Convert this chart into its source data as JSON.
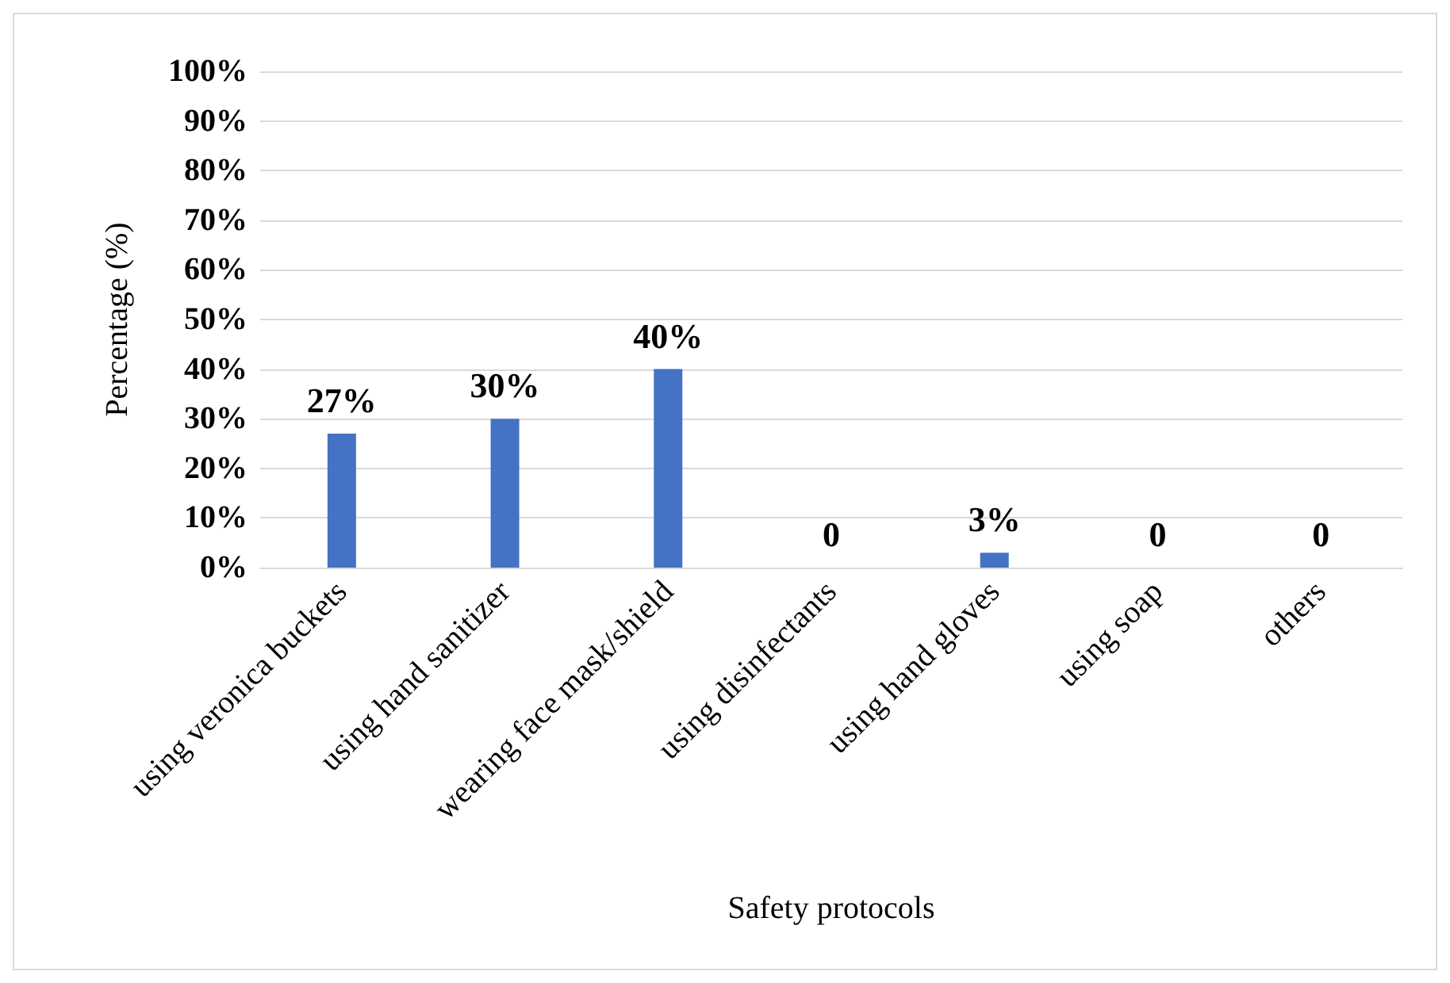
{
  "chart_data": {
    "type": "bar",
    "xlabel": "Safety protocols",
    "ylabel": "Percentage (%)",
    "categories": [
      "using veronica buckets",
      "using hand sanitizer",
      "wearing face mask/shield",
      "using disinfectants",
      "using hand gloves",
      "using soap",
      "others"
    ],
    "values": [
      27,
      30,
      40,
      0,
      3,
      0,
      0
    ],
    "value_labels": [
      "27%",
      "30%",
      "40%",
      "0",
      "3%",
      "0",
      "0"
    ],
    "color": "#4472c4",
    "ylim": [
      0,
      100
    ],
    "yticks": [
      {
        "value": 0,
        "label": "0%"
      },
      {
        "value": 10,
        "label": "10%"
      },
      {
        "value": 20,
        "label": "20%"
      },
      {
        "value": 30,
        "label": "30%"
      },
      {
        "value": 40,
        "label": "40%"
      },
      {
        "value": 50,
        "label": "50%"
      },
      {
        "value": 60,
        "label": "60%"
      },
      {
        "value": 70,
        "label": "70%"
      },
      {
        "value": 80,
        "label": "80%"
      },
      {
        "value": 90,
        "label": "90%"
      },
      {
        "value": 100,
        "label": "100%"
      }
    ],
    "grid": "y"
  }
}
